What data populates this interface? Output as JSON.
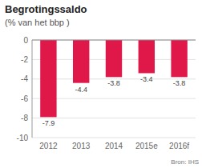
{
  "chart_data": {
    "type": "bar",
    "title": "Begrotingssaldo",
    "subtitle": "(% van het bbp )",
    "categories": [
      "2012",
      "2013",
      "2014",
      "2015e",
      "2016f"
    ],
    "values": [
      -7.9,
      -4.4,
      -3.8,
      -3.4,
      -3.8
    ],
    "color": "#e0184a",
    "ylim": [
      -10,
      0
    ],
    "yticks": [
      0,
      -2,
      -4,
      -6,
      -8,
      -10
    ],
    "grid": true,
    "data_labels": true,
    "annotations": [
      "Bron: IHS"
    ]
  }
}
